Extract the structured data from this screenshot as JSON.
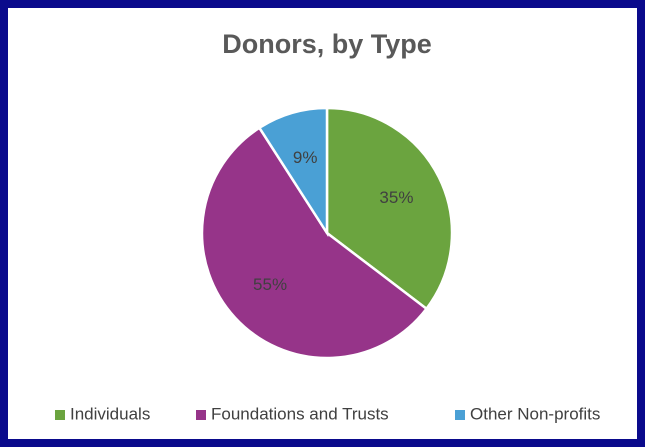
{
  "chart_data": {
    "type": "pie",
    "title": "Donors, by Type",
    "categories": [
      "Individuals",
      "Foundations and Trusts",
      "Other Non-profits"
    ],
    "values": [
      35,
      55,
      9
    ],
    "value_labels": [
      "35%",
      "55%",
      "9%"
    ],
    "colors": [
      "#6ba43f",
      "#963489",
      "#4aa0d5"
    ],
    "legend": "bottom"
  }
}
